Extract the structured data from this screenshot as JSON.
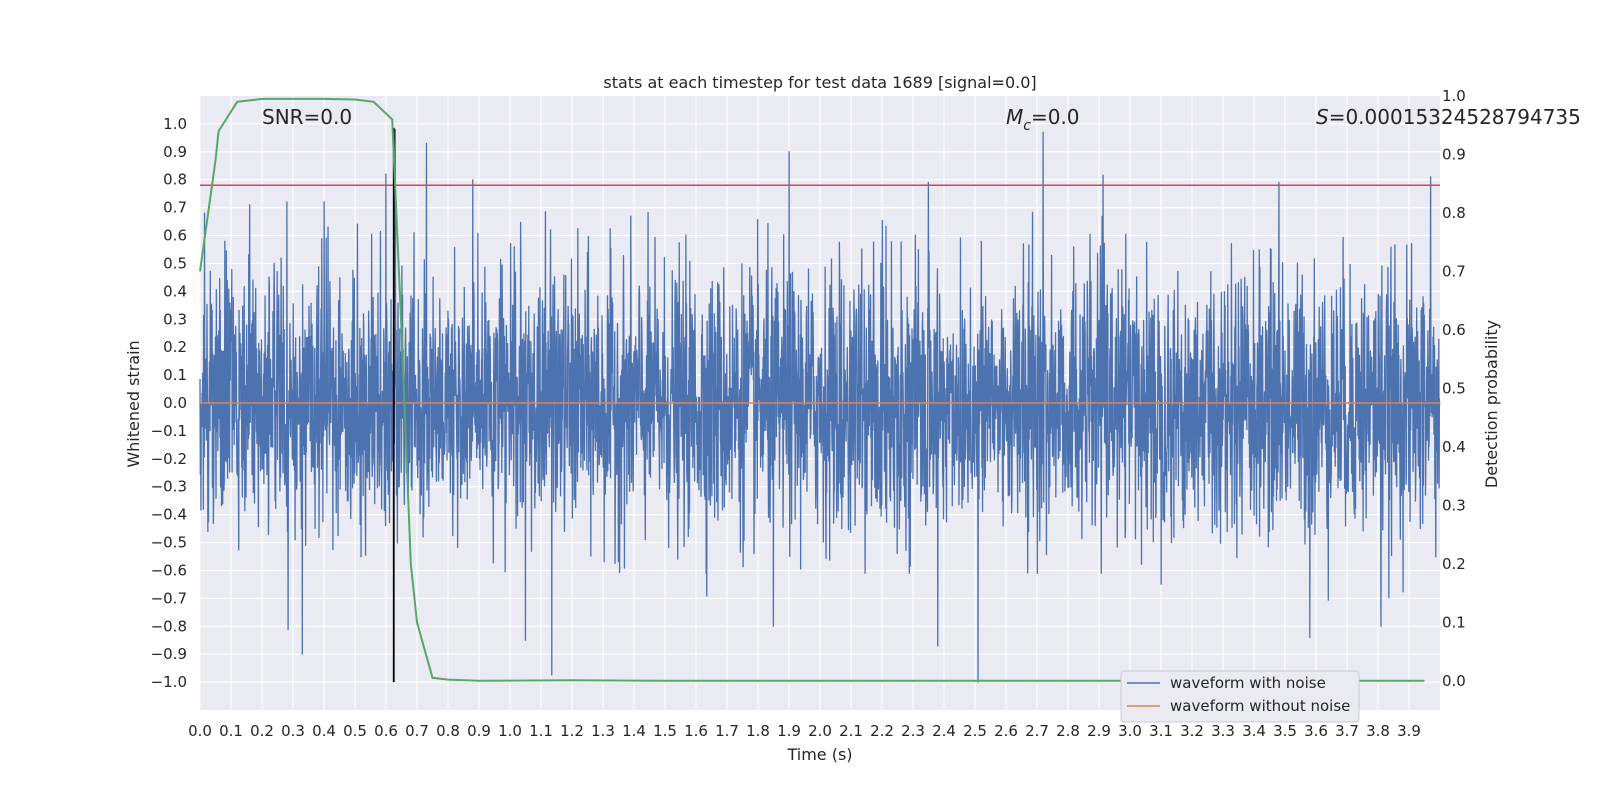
{
  "chart_data": {
    "type": "line",
    "title": "stats at each timestep for test data 1689 [signal=0.0]",
    "xlabel": "Time (s)",
    "ylabel": "Whitened strain",
    "y2label": "Detection probability",
    "xlim": [
      0.0,
      4.0
    ],
    "ylim": [
      -1.1,
      1.1
    ],
    "y2lim": [
      -0.05,
      1.0
    ],
    "xticks": [
      "0.0",
      "0.1",
      "0.2",
      "0.3",
      "0.4",
      "0.5",
      "0.6",
      "0.7",
      "0.8",
      "0.9",
      "1.0",
      "1.1",
      "1.2",
      "1.3",
      "1.4",
      "1.5",
      "1.6",
      "1.7",
      "1.8",
      "1.9",
      "2.0",
      "2.1",
      "2.2",
      "2.3",
      "2.4",
      "2.5",
      "2.6",
      "2.7",
      "2.8",
      "2.9",
      "3.0",
      "3.1",
      "3.2",
      "3.3",
      "3.4",
      "3.5",
      "3.6",
      "3.7",
      "3.8",
      "3.9"
    ],
    "yticks": [
      "1.0",
      "0.9",
      "0.8",
      "0.7",
      "0.6",
      "0.5",
      "0.4",
      "0.3",
      "0.2",
      "0.1",
      "0.0",
      "-0.1",
      "-0.2",
      "-0.3",
      "-0.4",
      "-0.5",
      "-0.6",
      "-0.7",
      "-0.8",
      "-0.9",
      "-1.0"
    ],
    "y2ticks": [
      "0.0",
      "0.1",
      "0.2",
      "0.3",
      "0.4",
      "0.5",
      "0.6",
      "0.7",
      "0.8",
      "0.9",
      "1.0"
    ],
    "grid": true,
    "legend_position": "lower-right",
    "annotations": {
      "snr": "SNR=0.0",
      "mc_symbol": "M",
      "mc_sub": "c",
      "mc_value": "=0.0",
      "s_symbol": "S",
      "s_value": "=0.00015324528794735"
    },
    "threshold_strain": 0.78,
    "marker_time": 0.625,
    "series": [
      {
        "name": "waveform with noise",
        "color": "#4c72b0",
        "sample_rate": 1024,
        "peaks": [
          [
            0.015,
            0.68
          ],
          [
            0.08,
            0.58
          ],
          [
            0.16,
            0.71
          ],
          [
            0.28,
            0.72
          ],
          [
            0.33,
            -0.9
          ],
          [
            0.4,
            0.72
          ],
          [
            0.6,
            0.82
          ],
          [
            0.63,
            0.98
          ],
          [
            0.73,
            0.93
          ],
          [
            0.88,
            0.8
          ],
          [
            1.05,
            -0.85
          ],
          [
            1.9,
            0.9
          ],
          [
            1.85,
            -0.8
          ],
          [
            2.35,
            0.79
          ],
          [
            2.38,
            -0.87
          ],
          [
            2.51,
            -1.0
          ],
          [
            2.72,
            0.97
          ],
          [
            3.48,
            0.79
          ],
          [
            3.58,
            -0.84
          ],
          [
            3.81,
            -0.8
          ],
          [
            3.97,
            0.81
          ]
        ],
        "amplitude": 0.23
      },
      {
        "name": "waveform without noise",
        "color": "#dd8452",
        "value": 0.0
      },
      {
        "name": "Detection probability",
        "color": "#55a868",
        "axis": "right",
        "x": [
          0.0,
          0.05,
          0.06,
          0.12,
          0.2,
          0.3,
          0.4,
          0.5,
          0.56,
          0.62,
          0.65,
          0.68,
          0.7,
          0.75,
          0.8,
          0.9,
          1.2,
          1.5,
          2.0,
          3.0,
          3.95
        ],
        "y": [
          0.7,
          0.89,
          0.94,
          0.99,
          0.995,
          0.995,
          0.995,
          0.994,
          0.99,
          0.96,
          0.6,
          0.2,
          0.1,
          0.005,
          0.002,
          0.0,
          0.001,
          0.0,
          0.0,
          0.0,
          0.0
        ]
      }
    ]
  },
  "colors": {
    "plot_bg": "#eaeaf2",
    "grid": "#ffffff",
    "threshold": "#c44e52",
    "marker": "#000000"
  }
}
